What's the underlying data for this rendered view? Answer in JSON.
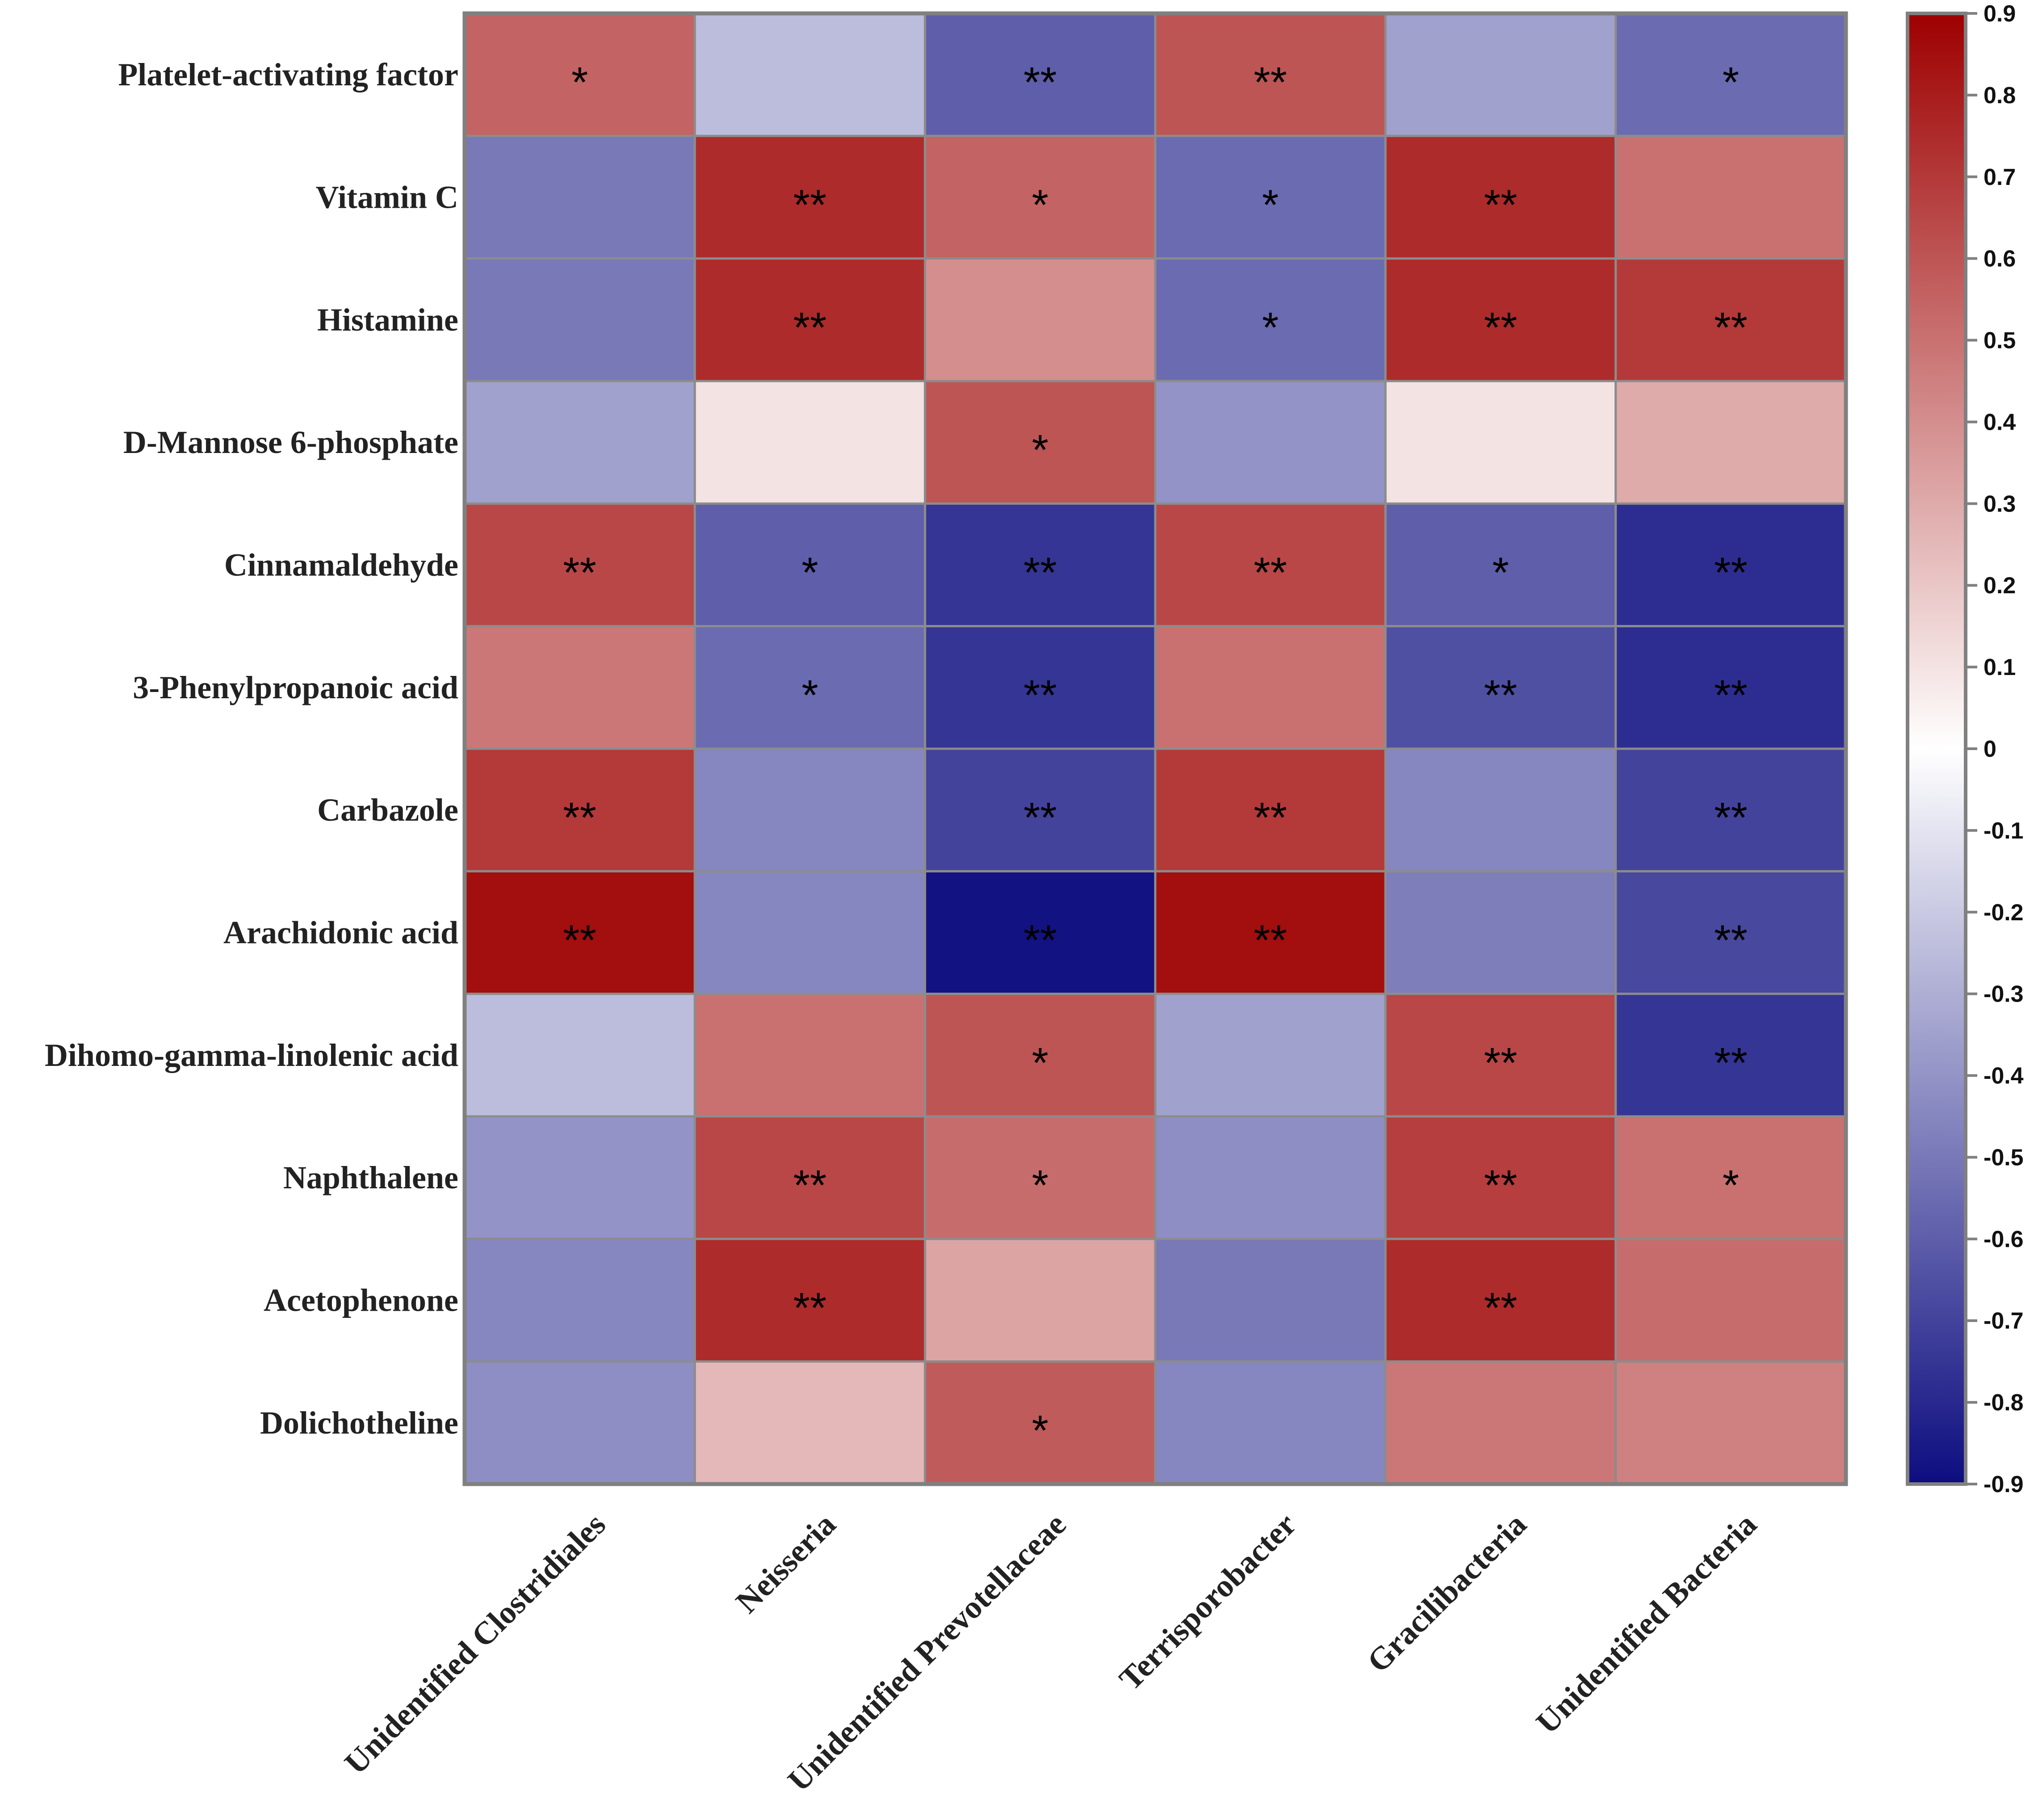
{
  "chart_data": {
    "type": "heatmap",
    "title": "",
    "rows": [
      "Platelet-activating factor",
      "Vitamin C",
      "Histamine",
      "D-Mannose 6-phosphate",
      "Cinnamaldehyde",
      "3-Phenylpropanoic acid",
      "Carbazole",
      "Arachidonic acid",
      "Dihomo-gamma-linolenic acid",
      "Naphthalene",
      "Acetophenone",
      "Dolichotheline"
    ],
    "columns": [
      "Unidentified Clostridiales",
      "Neisseria",
      "Unidentified Prevotellaceae",
      "Terrisporobacter",
      "Gracilibacteria",
      "Unidentified Bacteria"
    ],
    "values": [
      [
        0.55,
        -0.25,
        -0.6,
        0.6,
        -0.35,
        -0.55
      ],
      [
        -0.5,
        0.75,
        0.55,
        -0.55,
        0.75,
        0.5
      ],
      [
        -0.5,
        0.75,
        0.4,
        -0.55,
        0.75,
        0.7
      ],
      [
        -0.35,
        0.1,
        0.6,
        -0.4,
        0.1,
        0.3
      ],
      [
        0.65,
        -0.6,
        -0.75,
        0.65,
        -0.6,
        -0.78
      ],
      [
        0.48,
        -0.55,
        -0.75,
        0.5,
        -0.65,
        -0.78
      ],
      [
        0.7,
        -0.45,
        -0.7,
        0.7,
        -0.45,
        -0.7
      ],
      [
        0.85,
        -0.45,
        -0.88,
        0.85,
        -0.48,
        -0.68
      ],
      [
        -0.25,
        0.5,
        0.6,
        -0.35,
        0.65,
        -0.75
      ],
      [
        -0.4,
        0.65,
        0.52,
        -0.42,
        0.68,
        0.5
      ],
      [
        -0.45,
        0.75,
        0.32,
        -0.5,
        0.75,
        0.52
      ],
      [
        -0.42,
        0.25,
        0.58,
        -0.45,
        0.48,
        0.45
      ]
    ],
    "significance": [
      [
        "*",
        "",
        "**",
        "**",
        "",
        "*"
      ],
      [
        "",
        "**",
        "*",
        "*",
        "**",
        ""
      ],
      [
        "",
        "**",
        "",
        "*",
        "**",
        "**"
      ],
      [
        "",
        "",
        "*",
        "",
        "",
        ""
      ],
      [
        "**",
        "*",
        "**",
        "**",
        "*",
        "**"
      ],
      [
        "",
        "*",
        "**",
        "",
        "**",
        "**"
      ],
      [
        "**",
        "",
        "**",
        "**",
        "",
        "**"
      ],
      [
        "**",
        "",
        "**",
        "**",
        "",
        "**"
      ],
      [
        "",
        "",
        "*",
        "",
        "**",
        "**"
      ],
      [
        "",
        "**",
        "*",
        "",
        "**",
        "*"
      ],
      [
        "",
        "**",
        "",
        "",
        "**",
        ""
      ],
      [
        "",
        "",
        "*",
        "",
        "",
        ""
      ]
    ],
    "colorbar": {
      "min": -0.9,
      "max": 0.9,
      "ticks": [
        "0.9",
        "0.8",
        "0.7",
        "0.6",
        "0.5",
        "0.4",
        "0.3",
        "0.2",
        "0.1",
        "0",
        "-0.1",
        "-0.2",
        "-0.3",
        "-0.4",
        "-0.5",
        "-0.6",
        "-0.7",
        "-0.8",
        "-0.9"
      ],
      "colors": {
        "low": "#0d0d80",
        "mid": "#ffffff",
        "high": "#9e0000"
      }
    },
    "legend_position": "right"
  }
}
